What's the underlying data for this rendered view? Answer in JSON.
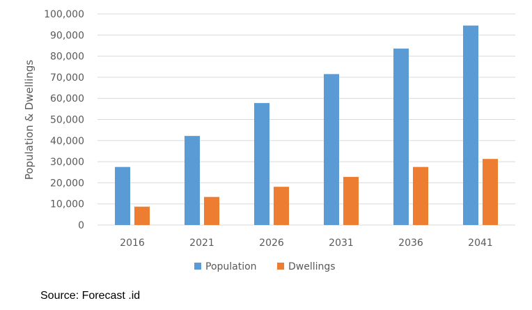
{
  "chart_data": {
    "type": "bar",
    "title": "",
    "xlabel": "",
    "ylabel": "Population & Dwellings",
    "categories": [
      "2016",
      "2021",
      "2026",
      "2031",
      "2036",
      "2041"
    ],
    "series": [
      {
        "name": "Population",
        "values": [
          27500,
          42200,
          57800,
          71500,
          83600,
          94500
        ]
      },
      {
        "name": "Dwellings",
        "values": [
          8700,
          13300,
          18100,
          22800,
          27500,
          31300
        ]
      }
    ],
    "ylim": [
      0,
      100000
    ],
    "yticks": [
      "0",
      "10,000",
      "20,000",
      "30,000",
      "40,000",
      "50,000",
      "60,000",
      "70,000",
      "80,000",
      "90,000",
      "100,000"
    ],
    "ytick_values": [
      0,
      10000,
      20000,
      30000,
      40000,
      50000,
      60000,
      70000,
      80000,
      90000,
      100000
    ],
    "grid": true,
    "legend_position": "bottom",
    "colors": {
      "Population": "#5b9bd5",
      "Dwellings": "#ed7d31",
      "grid": "#d9d9d9"
    }
  },
  "source_note": "Source: Forecast .id"
}
